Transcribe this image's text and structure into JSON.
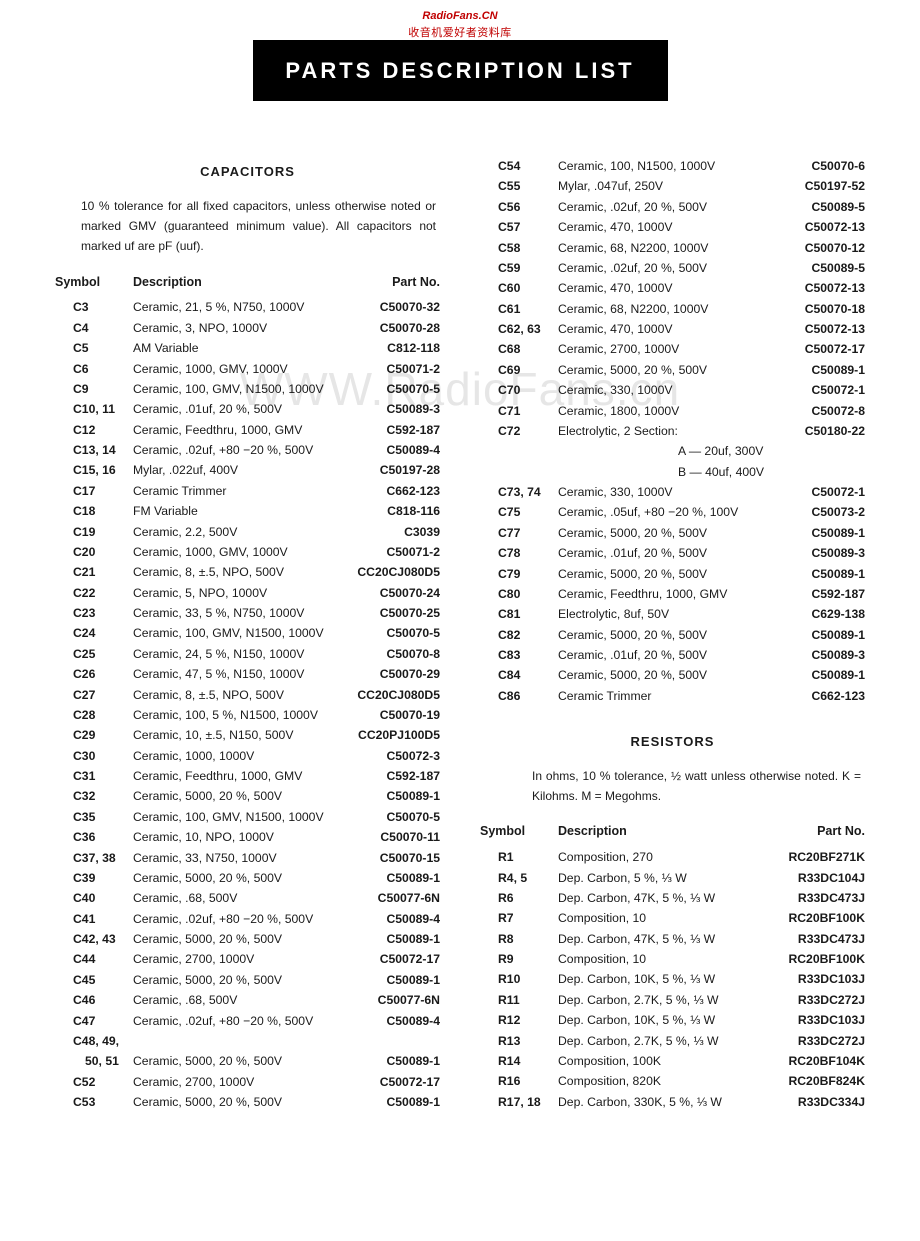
{
  "watermark": {
    "line1": "RadioFans.CN",
    "line2": "收音机爱好者资料库",
    "center": "WWW.RadioFans.cn"
  },
  "title": "PARTS DESCRIPTION LIST",
  "capacitors": {
    "heading": "CAPACITORS",
    "note": "10 % tolerance for all fixed capacitors, unless otherwise noted or marked GMV (guaranteed minimum value). All capacitors not marked uf are pF (uuf).",
    "head_symbol": "Symbol",
    "head_desc": "Description",
    "head_part": "Part No.",
    "rows_left": [
      {
        "s": "C3",
        "d": "Ceramic, 21, 5 %, N750, 1000V",
        "p": "C50070-32"
      },
      {
        "s": "C4",
        "d": "Ceramic, 3, NPO, 1000V",
        "p": "C50070-28"
      },
      {
        "s": "C5",
        "d": "AM Variable",
        "p": "C812-118"
      },
      {
        "s": "C6",
        "d": "Ceramic, 1000, GMV, 1000V",
        "p": "C50071-2"
      },
      {
        "s": "C9",
        "d": "Ceramic, 100, GMV, N1500, 1000V",
        "p": "C50070-5"
      },
      {
        "s": "C10, 11",
        "d": "Ceramic, .01uf, 20 %, 500V",
        "p": "C50089-3"
      },
      {
        "s": "C12",
        "d": "Ceramic, Feedthru, 1000, GMV",
        "p": "C592-187"
      },
      {
        "s": "C13, 14",
        "d": "Ceramic, .02uf, +80 −20 %, 500V",
        "p": "C50089-4"
      },
      {
        "s": "C15, 16",
        "d": "Mylar, .022uf, 400V",
        "p": "C50197-28"
      },
      {
        "s": "C17",
        "d": "Ceramic Trimmer",
        "p": "C662-123"
      },
      {
        "s": "C18",
        "d": "FM Variable",
        "p": "C818-116"
      },
      {
        "s": "C19",
        "d": "Ceramic, 2.2, 500V",
        "p": "C3039"
      },
      {
        "s": "C20",
        "d": "Ceramic, 1000, GMV, 1000V",
        "p": "C50071-2"
      },
      {
        "s": "C21",
        "d": "Ceramic, 8, ±.5, NPO, 500V",
        "p": "CC20CJ080D5"
      },
      {
        "s": "C22",
        "d": "Ceramic, 5, NPO, 1000V",
        "p": "C50070-24"
      },
      {
        "s": "C23",
        "d": "Ceramic, 33, 5 %, N750, 1000V",
        "p": "C50070-25"
      },
      {
        "s": "C24",
        "d": "Ceramic, 100, GMV, N1500, 1000V",
        "p": "C50070-5"
      },
      {
        "s": "C25",
        "d": "Ceramic, 24, 5 %, N150, 1000V",
        "p": "C50070-8"
      },
      {
        "s": "C26",
        "d": "Ceramic, 47, 5 %, N150, 1000V",
        "p": "C50070-29"
      },
      {
        "s": "C27",
        "d": "Ceramic, 8, ±.5, NPO, 500V",
        "p": "CC20CJ080D5"
      },
      {
        "s": "C28",
        "d": "Ceramic, 100, 5 %, N1500, 1000V",
        "p": "C50070-19"
      },
      {
        "s": "C29",
        "d": "Ceramic, 10, ±.5, N150, 500V",
        "p": "CC20PJ100D5"
      },
      {
        "s": "C30",
        "d": "Ceramic, 1000, 1000V",
        "p": "C50072-3"
      },
      {
        "s": "C31",
        "d": "Ceramic, Feedthru, 1000, GMV",
        "p": "C592-187"
      },
      {
        "s": "C32",
        "d": "Ceramic, 5000, 20 %, 500V",
        "p": "C50089-1"
      },
      {
        "s": "C35",
        "d": "Ceramic, 100, GMV, N1500, 1000V",
        "p": "C50070-5"
      },
      {
        "s": "C36",
        "d": "Ceramic, 10, NPO, 1000V",
        "p": "C50070-11"
      },
      {
        "s": "C37, 38",
        "d": "Ceramic, 33, N750, 1000V",
        "p": "C50070-15"
      },
      {
        "s": "C39",
        "d": "Ceramic, 5000, 20 %, 500V",
        "p": "C50089-1"
      },
      {
        "s": "C40",
        "d": "Ceramic, .68, 500V",
        "p": "C50077-6N"
      },
      {
        "s": "C41",
        "d": "Ceramic, .02uf, +80 −20 %, 500V",
        "p": "C50089-4"
      },
      {
        "s": "C42, 43",
        "d": "Ceramic, 5000, 20 %, 500V",
        "p": "C50089-1"
      },
      {
        "s": "C44",
        "d": "Ceramic, 2700, 1000V",
        "p": "C50072-17"
      },
      {
        "s": "C45",
        "d": "Ceramic, 5000, 20 %, 500V",
        "p": "C50089-1"
      },
      {
        "s": "C46",
        "d": "Ceramic, .68, 500V",
        "p": "C50077-6N"
      },
      {
        "s": "C47",
        "d": "Ceramic, .02uf, +80 −20 %, 500V",
        "p": "C50089-4"
      },
      {
        "s": "C48, 49,",
        "d": "",
        "p": ""
      },
      {
        "s": "  50, 51",
        "d": "Ceramic, 5000, 20 %, 500V",
        "p": "C50089-1"
      },
      {
        "s": "C52",
        "d": "Ceramic, 2700, 1000V",
        "p": "C50072-17"
      },
      {
        "s": "C53",
        "d": "Ceramic, 5000, 20 %, 500V",
        "p": "C50089-1"
      }
    ],
    "rows_right": [
      {
        "s": "C54",
        "d": "Ceramic, 100, N1500, 1000V",
        "p": "C50070-6"
      },
      {
        "s": "C55",
        "d": "Mylar, .047uf, 250V",
        "p": "C50197-52"
      },
      {
        "s": "C56",
        "d": "Ceramic, .02uf, 20 %, 500V",
        "p": "C50089-5"
      },
      {
        "s": "C57",
        "d": "Ceramic, 470, 1000V",
        "p": "C50072-13"
      },
      {
        "s": "C58",
        "d": "Ceramic, 68, N2200, 1000V",
        "p": "C50070-12"
      },
      {
        "s": "C59",
        "d": "Ceramic, .02uf, 20 %, 500V",
        "p": "C50089-5"
      },
      {
        "s": "C60",
        "d": "Ceramic, 470, 1000V",
        "p": "C50072-13"
      },
      {
        "s": "C61",
        "d": "Ceramic, 68, N2200, 1000V",
        "p": "C50070-18"
      },
      {
        "s": "C62, 63",
        "d": "Ceramic, 470, 1000V",
        "p": "C50072-13"
      },
      {
        "s": "C68",
        "d": "Ceramic, 2700, 1000V",
        "p": "C50072-17"
      },
      {
        "s": "C69",
        "d": "Ceramic, 5000, 20 %, 500V",
        "p": "C50089-1"
      },
      {
        "s": "C70",
        "d": "Ceramic, 330, 1000V",
        "p": "C50072-1"
      },
      {
        "s": "C71",
        "d": "Ceramic, 1800, 1000V",
        "p": "C50072-8"
      },
      {
        "s": "C72",
        "d": "Electrolytic, 2 Section:",
        "p": "C50180-22"
      },
      {
        "s": "",
        "d": "A — 20uf, 300V",
        "p": "",
        "sub": true
      },
      {
        "s": "",
        "d": "B — 40uf, 400V",
        "p": "",
        "sub": true
      },
      {
        "s": "C73, 74",
        "d": "Ceramic, 330, 1000V",
        "p": "C50072-1"
      },
      {
        "s": "C75",
        "d": "Ceramic, .05uf, +80 −20 %, 100V",
        "p": "C50073-2"
      },
      {
        "s": "C77",
        "d": "Ceramic, 5000, 20 %, 500V",
        "p": "C50089-1"
      },
      {
        "s": "C78",
        "d": "Ceramic, .01uf, 20 %, 500V",
        "p": "C50089-3"
      },
      {
        "s": "C79",
        "d": "Ceramic, 5000, 20 %, 500V",
        "p": "C50089-1"
      },
      {
        "s": "C80",
        "d": "Ceramic, Feedthru, 1000, GMV",
        "p": "C592-187"
      },
      {
        "s": "C81",
        "d": "Electrolytic, 8uf, 50V",
        "p": "C629-138"
      },
      {
        "s": "C82",
        "d": "Ceramic, 5000, 20 %, 500V",
        "p": "C50089-1"
      },
      {
        "s": "C83",
        "d": "Ceramic, .01uf, 20 %, 500V",
        "p": "C50089-3"
      },
      {
        "s": "C84",
        "d": "Ceramic, 5000, 20 %, 500V",
        "p": "C50089-1"
      },
      {
        "s": "C86",
        "d": "Ceramic Trimmer",
        "p": "C662-123"
      }
    ]
  },
  "resistors": {
    "heading": "RESISTORS",
    "note": "In ohms, 10 % tolerance, ½ watt unless otherwise noted. K = Kilohms. M = Megohms.",
    "head_symbol": "Symbol",
    "head_desc": "Description",
    "head_part": "Part No.",
    "rows": [
      {
        "s": "R1",
        "d": "Composition, 270",
        "p": "RC20BF271K"
      },
      {
        "s": "R4, 5",
        "d": "Dep. Carbon, 5 %, ⅓ W",
        "p": "R33DC104J"
      },
      {
        "s": "R6",
        "d": "Dep. Carbon, 47K, 5 %, ⅓ W",
        "p": "R33DC473J"
      },
      {
        "s": "R7",
        "d": "Composition, 10",
        "p": "RC20BF100K"
      },
      {
        "s": "R8",
        "d": "Dep. Carbon, 47K, 5 %, ⅓ W",
        "p": "R33DC473J"
      },
      {
        "s": "R9",
        "d": "Composition, 10",
        "p": "RC20BF100K"
      },
      {
        "s": "R10",
        "d": "Dep. Carbon, 10K, 5 %, ⅓ W",
        "p": "R33DC103J"
      },
      {
        "s": "R11",
        "d": "Dep. Carbon, 2.7K, 5 %, ⅓ W",
        "p": "R33DC272J"
      },
      {
        "s": "R12",
        "d": "Dep. Carbon, 10K, 5 %, ⅓ W",
        "p": "R33DC103J"
      },
      {
        "s": "R13",
        "d": "Dep. Carbon, 2.7K, 5 %, ⅓ W",
        "p": "R33DC272J"
      },
      {
        "s": "R14",
        "d": "Composition, 100K",
        "p": "RC20BF104K"
      },
      {
        "s": "R16",
        "d": "Composition, 820K",
        "p": "RC20BF824K"
      },
      {
        "s": "R17, 18",
        "d": "Dep. Carbon, 330K, 5 %, ⅓ W",
        "p": "R33DC334J"
      }
    ]
  }
}
